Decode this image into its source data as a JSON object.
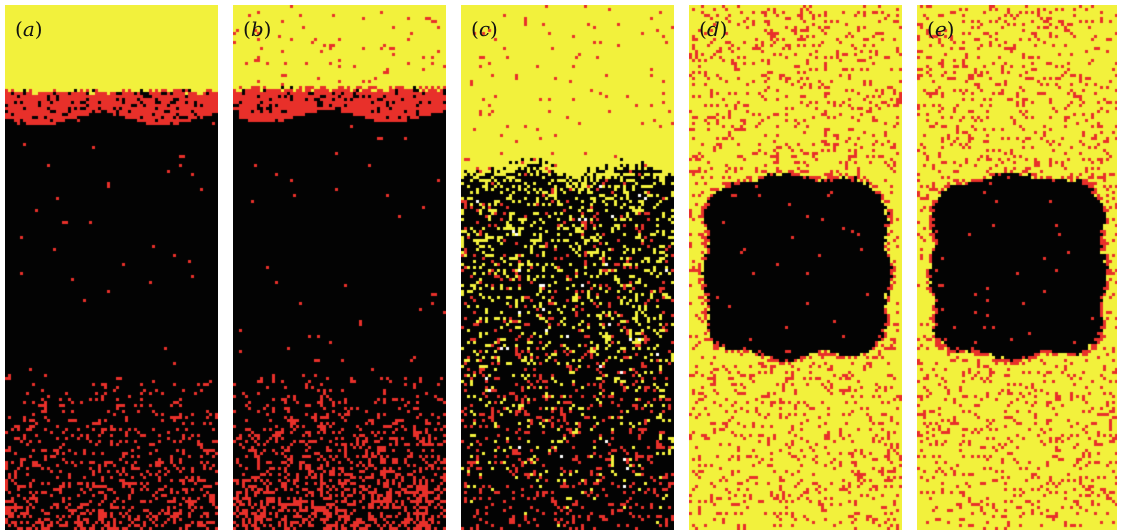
{
  "figure": {
    "panels": [
      {
        "id": "a",
        "label_open": "(",
        "label_letter": "a",
        "label_close": ")",
        "pattern": "black-front-top"
      },
      {
        "id": "b",
        "label_open": "(",
        "label_letter": "b",
        "label_close": ")",
        "pattern": "black-front-top-scattered"
      },
      {
        "id": "c",
        "label_open": "(",
        "label_letter": "c",
        "label_close": ")",
        "pattern": "diffuse-front"
      },
      {
        "id": "d",
        "label_open": "(",
        "label_letter": "d",
        "label_close": ")",
        "pattern": "central-block"
      },
      {
        "id": "e",
        "label_open": "(",
        "label_letter": "e",
        "label_close": ")",
        "pattern": "central-block"
      }
    ],
    "colors": {
      "yellow": "#f2f13c",
      "red": "#e8302a",
      "black": "#030303",
      "white": "#ffffff"
    }
  }
}
